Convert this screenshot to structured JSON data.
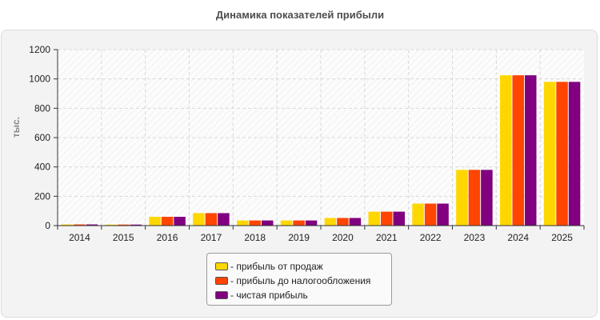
{
  "chart_data": {
    "type": "bar",
    "title": "Динамика показателей прибыли",
    "xlabel": "",
    "ylabel": "тыс.",
    "ylim": [
      0,
      1200
    ],
    "yticks": [
      "0",
      "200",
      "400",
      "600",
      "800",
      "1000",
      "1200"
    ],
    "categories": [
      "2014",
      "2015",
      "2016",
      "2017",
      "2018",
      "2019",
      "2020",
      "2021",
      "2022",
      "2023",
      "2024",
      "2025"
    ],
    "series": [
      {
        "name": "- прибыль от продаж",
        "color": "#ffd700",
        "values": [
          8,
          7,
          60,
          85,
          35,
          35,
          52,
          95,
          150,
          380,
          1025,
          980
        ]
      },
      {
        "name": "- прибыль до налогообложения",
        "color": "#ff4500",
        "values": [
          8,
          7,
          60,
          85,
          35,
          35,
          52,
          95,
          150,
          380,
          1025,
          980
        ]
      },
      {
        "name": "- чистая прибыль",
        "color": "#800080",
        "values": [
          8,
          7,
          60,
          85,
          35,
          35,
          52,
          95,
          150,
          380,
          1025,
          980
        ]
      }
    ],
    "grid": true,
    "legend_position": "bottom-center"
  }
}
